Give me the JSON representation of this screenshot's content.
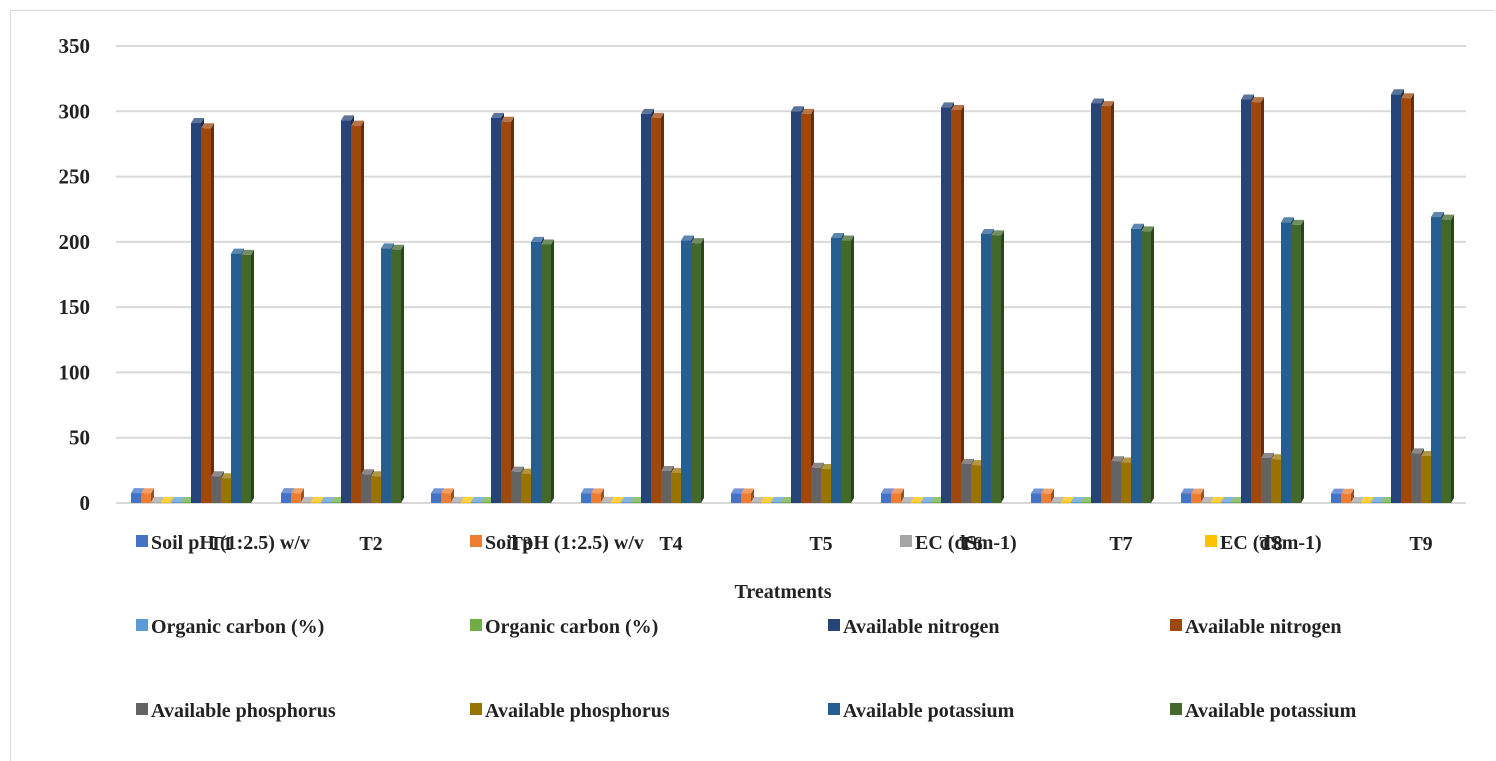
{
  "chart_data": {
    "type": "bar",
    "title": "",
    "xlabel": "Treatments",
    "ylabel": "",
    "ylim": [
      0,
      350
    ],
    "yticks": [
      0,
      50,
      100,
      150,
      200,
      250,
      300,
      350
    ],
    "grid": true,
    "legend_position": "bottom",
    "categories": [
      "T1",
      "T2",
      "T3",
      "T4",
      "T5",
      "T6",
      "T7",
      "T8",
      "T9"
    ],
    "series": [
      {
        "name": "Soil pH (1:2.5) w/v",
        "color": "#4472c4",
        "values": [
          7.6,
          7.6,
          7.5,
          7.5,
          7.4,
          7.4,
          7.3,
          7.3,
          7.2
        ]
      },
      {
        "name": "Soil pH (1:2.5) w/v",
        "color": "#ed7d31",
        "values": [
          7.5,
          7.5,
          7.4,
          7.4,
          7.3,
          7.3,
          7.2,
          7.2,
          7.1
        ]
      },
      {
        "name": "EC (dSm-1)",
        "color": "#a5a5a5",
        "values": [
          0.9,
          0.9,
          0.9,
          0.9,
          0.8,
          0.8,
          0.8,
          0.8,
          0.8
        ]
      },
      {
        "name": "EC (dSm-1)",
        "color": "#ffc000",
        "values": [
          0.9,
          0.9,
          0.9,
          0.8,
          0.8,
          0.8,
          0.8,
          0.8,
          0.7
        ]
      },
      {
        "name": "Organic carbon (%)",
        "color": "#5b9bd5",
        "values": [
          0.5,
          0.5,
          0.5,
          0.5,
          0.6,
          0.6,
          0.6,
          0.6,
          0.6
        ]
      },
      {
        "name": "Organic carbon (%)",
        "color": "#70ad47",
        "values": [
          0.5,
          0.5,
          0.5,
          0.5,
          0.5,
          0.6,
          0.6,
          0.6,
          0.6
        ]
      },
      {
        "name": "Available nitrogen",
        "color": "#264478",
        "values": [
          291,
          293,
          295,
          298,
          300,
          303,
          306,
          309,
          313
        ]
      },
      {
        "name": "Available nitrogen",
        "color": "#9e480e",
        "values": [
          287,
          289,
          292,
          295,
          298,
          301,
          304,
          307,
          310
        ]
      },
      {
        "name": "Available phosphorus",
        "color": "#636363",
        "values": [
          20.5,
          22,
          24,
          24.5,
          27,
          30,
          32,
          34.5,
          38
        ]
      },
      {
        "name": "Available phosphorus",
        "color": "#997300",
        "values": [
          19,
          20.5,
          22.5,
          23,
          26,
          29,
          31,
          33.5,
          36
        ]
      },
      {
        "name": "Available potassium",
        "color": "#255e91",
        "values": [
          191,
          195,
          200,
          201,
          203,
          206,
          210,
          215,
          219
        ]
      },
      {
        "name": "Available potassium",
        "color": "#43682b",
        "values": [
          190,
          194,
          198,
          199,
          201,
          205,
          208,
          213,
          217
        ]
      }
    ]
  }
}
